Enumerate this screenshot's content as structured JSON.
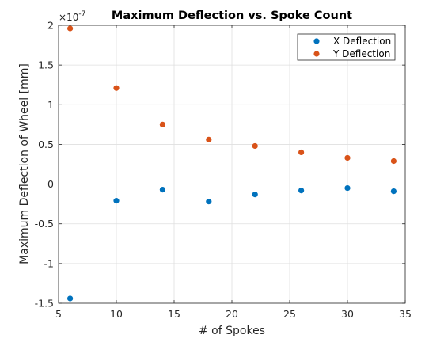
{
  "chart_data": {
    "type": "scatter",
    "title": "Maximum Deflection vs. Spoke Count",
    "xlabel": "# of Spokes",
    "ylabel": "Maximum Deflection of Wheel [mm]",
    "xlim": [
      5,
      35
    ],
    "ylim": [
      -1.5,
      2
    ],
    "xticks": [
      5,
      10,
      15,
      20,
      25,
      30,
      35
    ],
    "xtick_labels": [
      "5",
      "10",
      "15",
      "20",
      "25",
      "30",
      "35"
    ],
    "yticks": [
      -1.5,
      -1,
      -0.5,
      0,
      0.5,
      1,
      1.5,
      2
    ],
    "ytick_labels": [
      "-1.5",
      "-1",
      "-0.5",
      "0",
      "0.5",
      "1",
      "1.5",
      "2"
    ],
    "y_exponent": {
      "base": "×10",
      "power": "-7"
    },
    "grid": true,
    "legend_position": "top-right",
    "x": [
      6,
      10,
      14,
      18,
      22,
      26,
      30,
      34
    ],
    "series": [
      {
        "name": "X Deflection",
        "color": "#0072bd",
        "values": [
          -1.44,
          -0.21,
          -0.07,
          -0.22,
          -0.13,
          -0.08,
          -0.05,
          -0.09
        ]
      },
      {
        "name": "Y Deflection",
        "color": "#d95319",
        "values": [
          1.96,
          1.21,
          0.75,
          0.56,
          0.48,
          0.4,
          0.33,
          0.29
        ]
      }
    ]
  }
}
